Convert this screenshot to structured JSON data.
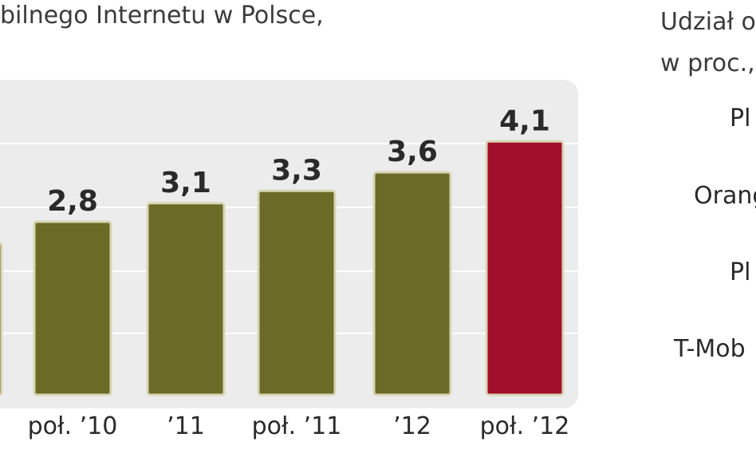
{
  "left_title": "bilnego Internetu w Polsce,",
  "right_panel": {
    "title_line1": "Udział o",
    "title_line2": "w proc.,",
    "operators": [
      "Pl",
      "Orang",
      "Pl",
      "T-Mob"
    ]
  },
  "chart_data": {
    "type": "bar",
    "categories": [
      "",
      "poł. '10",
      "'11",
      "poł. '11",
      "'12",
      "poł. '12"
    ],
    "values": [
      null,
      2.8,
      3.1,
      3.3,
      3.6,
      4.1
    ],
    "value_labels": [
      "",
      "2,8",
      "3,1",
      "3,3",
      "3,6",
      "4,1"
    ],
    "tick_labels": [
      "",
      "poł. ’10",
      "’11",
      "poł. ’11",
      "’12",
      "poł. ’12"
    ],
    "title": "",
    "xlabel": "",
    "ylabel": "",
    "grid": true,
    "colors": {
      "bar": "#6b6a26",
      "highlight": "#a20f2b",
      "panel": "#ececec",
      "grid": "#ffffff",
      "bar_border": "#d8d6b4"
    }
  }
}
